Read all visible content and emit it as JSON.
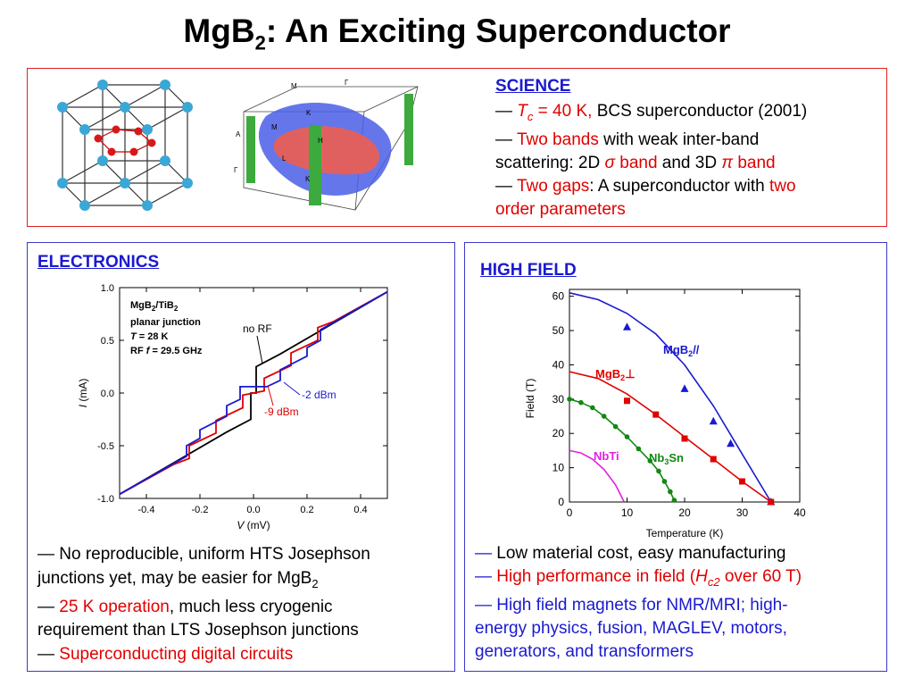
{
  "title": {
    "main": "MgB",
    "sub": "2",
    "rest": ": An Exciting Superconductor"
  },
  "science": {
    "heading": "SCIENCE",
    "dash": "—",
    "tc_T": "T",
    "tc_c": "c",
    "tc_val": " = 40 K,",
    "tc_rest": " BCS superconductor (2001)",
    "bands_red": "Two bands",
    "bands_rest": " with weak inter-band",
    "bands_line2a": "scattering: 2D ",
    "sigma": "σ",
    "sigma_band": " band",
    "and3d": " and 3D ",
    "pi": "π",
    "pi_band": " band",
    "gaps_red": "Two gaps",
    "gaps_rest": ": A superconductor with ",
    "gaps_red2": "two",
    "gaps_line2": "order parameters"
  },
  "crystal_figure": {
    "fermi_labels": [
      "M",
      "Γ",
      "K",
      "M",
      "A",
      "H",
      "L",
      "K",
      "Γ"
    ]
  },
  "electronics": {
    "heading": "ELECTRONICS",
    "bullet1a": "— No reproducible, uniform HTS Josephson",
    "bullet1b": "junctions yet, may be easier for MgB",
    "bullet1b_sub": "2",
    "bullet2_dash": "— ",
    "bullet2_red": "25 K operation",
    "bullet2_rest": ", much less cryogenic",
    "bullet2_line2": "requirement than LTS Josephson junctions",
    "bullet3_dash": "— ",
    "bullet3_red": "Superconducting digital circuits"
  },
  "highfield": {
    "heading": "HIGH FIELD",
    "b1_dash": "— ",
    "b1_text": "Low material cost, easy manufacturing",
    "b2_dash": "— ",
    "b2_text_a": "High performance in field (",
    "b2_H": "H",
    "b2_sub": "c2",
    "b2_text_b": " over 60 T)",
    "b3_line1": "— High field magnets for NMR/MRI; high-",
    "b3_line2": "energy physics, fusion, MAGLEV, motors,",
    "b3_line3": "generators, and transformers"
  },
  "chart_data": [
    {
      "type": "line",
      "xlabel_italic": "V",
      "xlabel_rest": " (mV)",
      "ylabel_italic": "I",
      "ylabel_rest": " (mA)",
      "xlim": [
        -0.5,
        0.5
      ],
      "ylim": [
        -1.0,
        1.0
      ],
      "x_ticks": [
        "-0.4",
        "-0.2",
        "0.0",
        "0.2",
        "0.4"
      ],
      "y_ticks": [
        "1.0",
        "0.5",
        "0.0",
        "-0.5",
        "-1.0"
      ],
      "legend_box": [
        "MgB2/TiB2",
        "planar junction",
        "T = 28 K",
        "RF f = 29.5 GHz"
      ],
      "legend_l1a": "MgB",
      "legend_l1b": "2",
      "legend_l1c": "/TiB",
      "legend_l1d": "2",
      "legend_l2": "planar junction",
      "legend_l3a": "T",
      "legend_l3b": " = 28 K",
      "legend_l4a": "RF ",
      "legend_l4b": "f",
      "legend_l4c": " = 29.5 GHz",
      "series": [
        {
          "name": "no RF",
          "color": "#000000",
          "points": [
            [
              -0.5,
              -0.96
            ],
            [
              -0.1,
              -0.37
            ],
            [
              -0.01,
              -0.25
            ],
            [
              -0.01,
              0.0
            ],
            [
              0.01,
              0.0
            ],
            [
              0.01,
              0.25
            ],
            [
              0.1,
              0.37
            ],
            [
              0.5,
              0.96
            ]
          ]
        },
        {
          "name": "-9 dBm",
          "color": "#e00000",
          "points": [
            [
              -0.5,
              -0.96
            ],
            [
              -0.3,
              -0.68
            ],
            [
              -0.24,
              -0.62
            ],
            [
              -0.24,
              -0.5
            ],
            [
              -0.14,
              -0.38
            ],
            [
              -0.14,
              -0.26
            ],
            [
              -0.04,
              -0.14
            ],
            [
              -0.04,
              -0.02
            ],
            [
              0.04,
              0.02
            ],
            [
              0.04,
              0.14
            ],
            [
              0.14,
              0.26
            ],
            [
              0.14,
              0.38
            ],
            [
              0.24,
              0.5
            ],
            [
              0.24,
              0.62
            ],
            [
              0.3,
              0.68
            ],
            [
              0.5,
              0.96
            ]
          ]
        },
        {
          "name": "-2 dBm",
          "color": "#1a1ad0",
          "points": [
            [
              -0.5,
              -0.96
            ],
            [
              -0.25,
              -0.6
            ],
            [
              -0.25,
              -0.5
            ],
            [
              -0.2,
              -0.43
            ],
            [
              -0.2,
              -0.35
            ],
            [
              -0.1,
              -0.22
            ],
            [
              -0.1,
              -0.12
            ],
            [
              -0.05,
              -0.06
            ],
            [
              -0.05,
              0.06
            ],
            [
              0.05,
              0.06
            ],
            [
              0.1,
              0.12
            ],
            [
              0.1,
              0.22
            ],
            [
              0.2,
              0.35
            ],
            [
              0.2,
              0.43
            ],
            [
              0.25,
              0.5
            ],
            [
              0.25,
              0.6
            ],
            [
              0.5,
              0.96
            ]
          ]
        }
      ]
    },
    {
      "type": "line",
      "xlabel": "Temperature (K)",
      "ylabel": "Field (T)",
      "xlim": [
        0,
        40
      ],
      "ylim": [
        0,
        62
      ],
      "x_ticks": [
        "0",
        "10",
        "20",
        "30",
        "40"
      ],
      "y_ticks": [
        "0",
        "10",
        "20",
        "30",
        "40",
        "50",
        "60"
      ],
      "series": [
        {
          "name_a": "MgB",
          "name_b": "2",
          "name_c": "//",
          "color": "#1a1ad0",
          "marker": "triangle",
          "points": [
            [
              10,
              51
            ],
            [
              20,
              33
            ],
            [
              25,
              23.5
            ],
            [
              28,
              17
            ],
            [
              35,
              0
            ]
          ]
        },
        {
          "name_a": "MgB",
          "name_b": "2",
          "name_c": "⊥",
          "color": "#e00000",
          "marker": "square",
          "points": [
            [
              10,
              29.5
            ],
            [
              15,
              25.5
            ],
            [
              20,
              18.5
            ],
            [
              25,
              12.5
            ],
            [
              30,
              6
            ],
            [
              35,
              0
            ]
          ]
        },
        {
          "name_a": "Nb",
          "name_b": "3",
          "name_c": "Sn",
          "color": "#118811",
          "marker": "circle",
          "points": [
            [
              0,
              30
            ],
            [
              2,
              29
            ],
            [
              4,
              27.5
            ],
            [
              6,
              25
            ],
            [
              8,
              22
            ],
            [
              10,
              19
            ],
            [
              12,
              15.5
            ],
            [
              14,
              12
            ],
            [
              15.5,
              9
            ],
            [
              16.5,
              6
            ],
            [
              17.5,
              3
            ],
            [
              18.2,
              0.5
            ]
          ]
        },
        {
          "name": "NbTi",
          "color": "#e020e0",
          "marker": "none",
          "points": [
            [
              0,
              15
            ],
            [
              2,
              14.3
            ],
            [
              4,
              12.5
            ],
            [
              6,
              9.5
            ],
            [
              8,
              5
            ],
            [
              9.5,
              0
            ]
          ]
        }
      ]
    }
  ]
}
